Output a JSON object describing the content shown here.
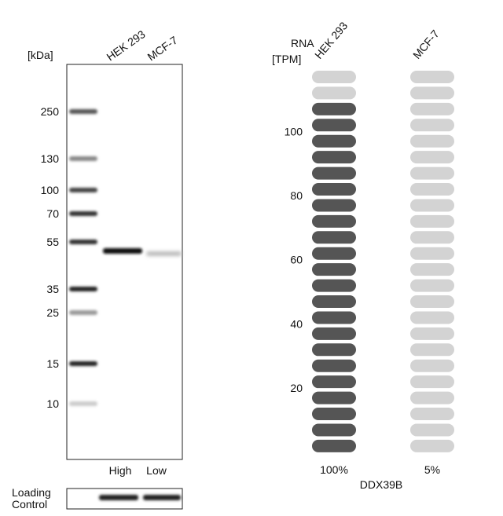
{
  "blot": {
    "unit_label": "[kDa]",
    "lanes": [
      "HEK 293",
      "MCF-7"
    ],
    "markers": [
      250,
      130,
      100,
      70,
      55,
      35,
      25,
      15,
      10
    ],
    "lane_levels": [
      "High",
      "Low"
    ],
    "loading_control": [
      "Loading",
      "Control"
    ]
  },
  "rna": {
    "axis_label": [
      "RNA",
      "[TPM]"
    ],
    "ticks": [
      20,
      40,
      60,
      80,
      100
    ],
    "pills": 24,
    "tpm_per_pill": 5,
    "columns": [
      {
        "label": "HEK 293",
        "filled_pills": 22,
        "percent": "100%"
      },
      {
        "label": "MCF-7",
        "filled_pills": 0,
        "percent": "5%"
      }
    ],
    "gene": "DDX39B"
  }
}
